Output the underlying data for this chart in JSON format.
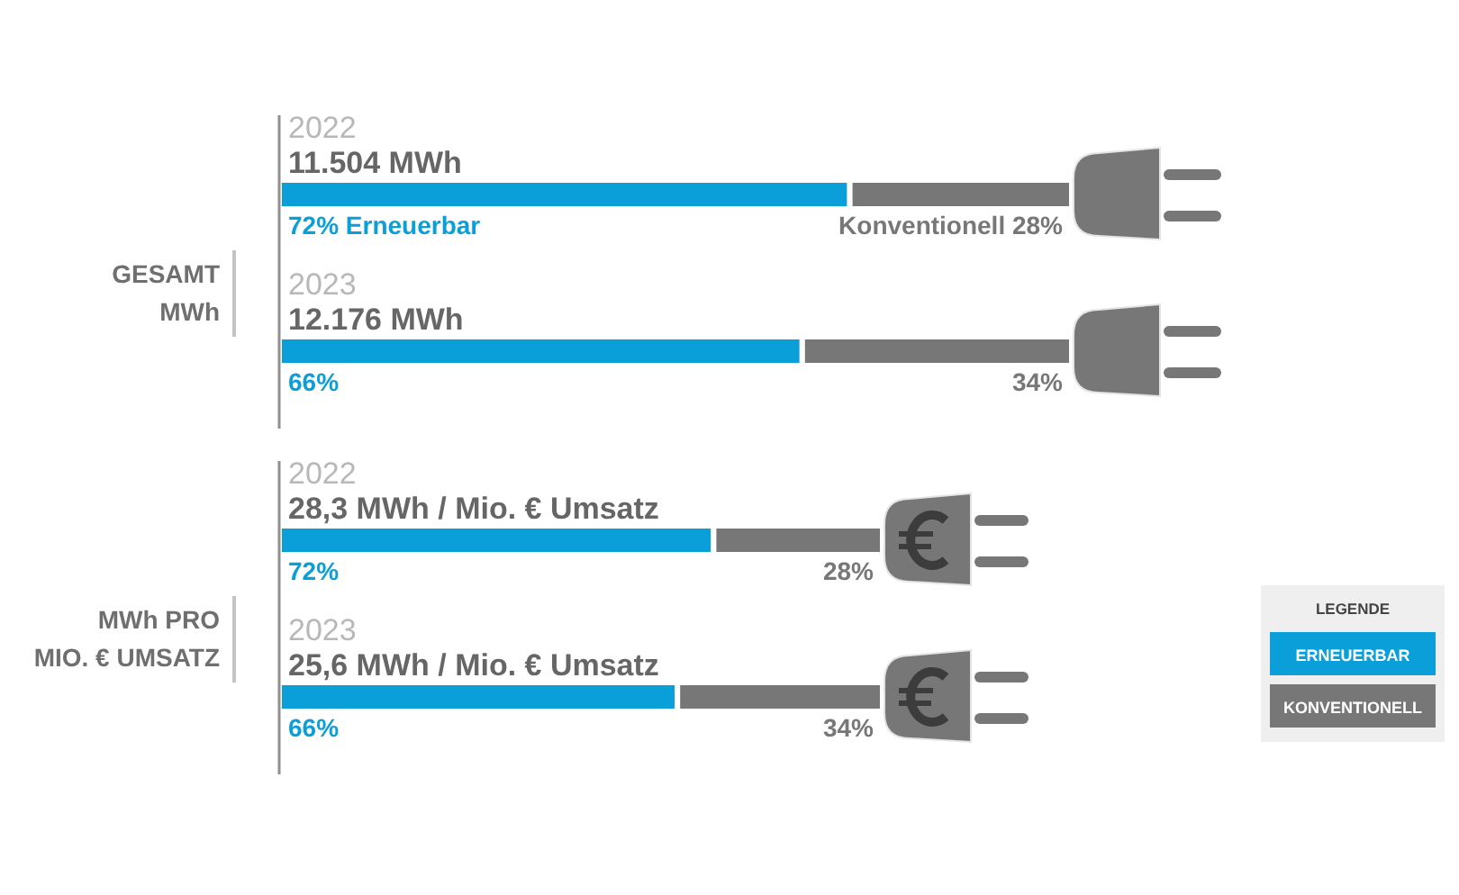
{
  "chart_data": [
    {
      "type": "bar",
      "orientation": "horizontal",
      "stacked": true,
      "ylabel": "GESAMT\nMWh",
      "categories": [
        "2022",
        "2023"
      ],
      "annotations": [
        "11.504 MWh",
        "12.176 MWh"
      ],
      "legend": false,
      "series": [
        {
          "color": "#0a9fd8",
          "values": [
            72,
            66
          ],
          "value_labels": [
            "72% Erneuerbar",
            "66%"
          ]
        },
        {
          "color": "#777777",
          "values": [
            28,
            34
          ],
          "value_labels": [
            "Konventionell 28%",
            "34%"
          ]
        }
      ]
    },
    {
      "type": "bar",
      "orientation": "horizontal",
      "stacked": true,
      "ylabel": "MWh PRO\nMIO. € UMSATZ",
      "categories": [
        "2022",
        "2023"
      ],
      "annotations": [
        "28,3 MWh / Mio. € Umsatz",
        "25,6 MWh / Mio. € Umsatz"
      ],
      "legend": "right",
      "legend_title": "LEGENDE",
      "series": [
        {
          "name": "ERNEUERBAR",
          "color": "#0a9fd8",
          "values": [
            72,
            66
          ],
          "value_labels": [
            "72%",
            "66%"
          ]
        },
        {
          "name": "KONVENTIONELL",
          "color": "#777777",
          "values": [
            28,
            34
          ],
          "value_labels": [
            "28%",
            "34%"
          ]
        }
      ]
    }
  ]
}
